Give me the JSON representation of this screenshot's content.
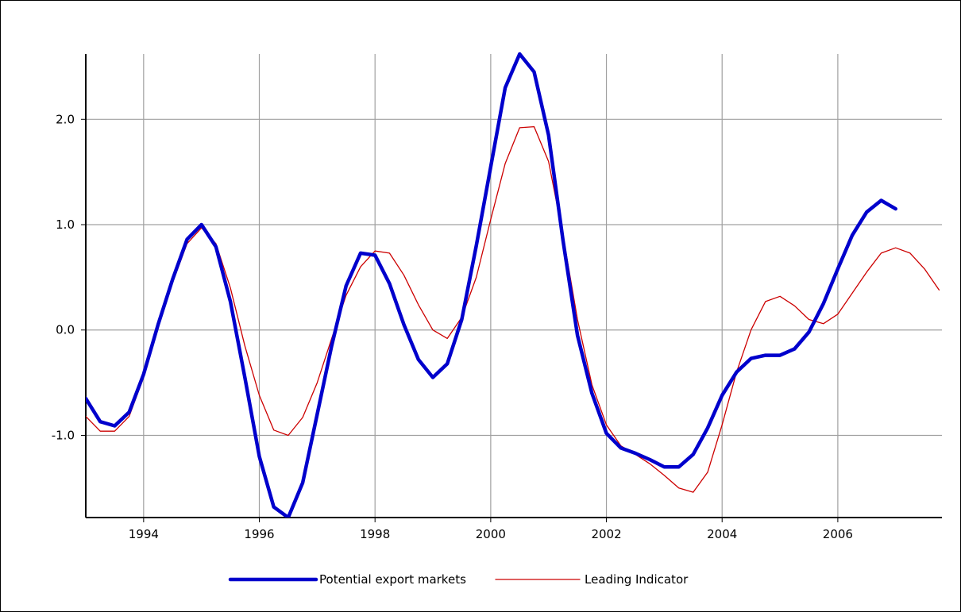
{
  "chart_data": {
    "type": "line",
    "title": "",
    "xlabel": "",
    "ylabel": "",
    "xlim": [
      1993.0,
      2007.8
    ],
    "ylim": [
      -1.78,
      2.62
    ],
    "grid": true,
    "legend_position": "bottom",
    "x_ticks": [
      {
        "value": 1994,
        "label": "1994"
      },
      {
        "value": 1996,
        "label": "1996"
      },
      {
        "value": 1998,
        "label": "1998"
      },
      {
        "value": 2000,
        "label": "2000"
      },
      {
        "value": 2002,
        "label": "2002"
      },
      {
        "value": 2004,
        "label": "2004"
      },
      {
        "value": 2006,
        "label": "2006"
      }
    ],
    "y_ticks": [
      {
        "value": -1.0,
        "label": "-1.0"
      },
      {
        "value": 0.0,
        "label": "0.0"
      },
      {
        "value": 1.0,
        "label": "1.0"
      },
      {
        "value": 2.0,
        "label": "2.0"
      }
    ],
    "series": [
      {
        "name": "Potential export markets",
        "color": "#0000cc",
        "style": "thick",
        "points": [
          [
            1993.0,
            -0.65
          ],
          [
            1993.25,
            -0.87
          ],
          [
            1993.5,
            -0.91
          ],
          [
            1993.75,
            -0.78
          ],
          [
            1994.0,
            -0.42
          ],
          [
            1994.25,
            0.05
          ],
          [
            1994.5,
            0.48
          ],
          [
            1994.75,
            0.86
          ],
          [
            1995.0,
            1.0
          ],
          [
            1995.25,
            0.79
          ],
          [
            1995.5,
            0.27
          ],
          [
            1995.75,
            -0.45
          ],
          [
            1996.0,
            -1.2
          ],
          [
            1996.25,
            -1.68
          ],
          [
            1996.5,
            -1.78
          ],
          [
            1996.75,
            -1.45
          ],
          [
            1997.0,
            -0.8
          ],
          [
            1997.25,
            -0.15
          ],
          [
            1997.5,
            0.42
          ],
          [
            1997.75,
            0.73
          ],
          [
            1998.0,
            0.71
          ],
          [
            1998.25,
            0.44
          ],
          [
            1998.5,
            0.05
          ],
          [
            1998.75,
            -0.28
          ],
          [
            1999.0,
            -0.45
          ],
          [
            1999.25,
            -0.32
          ],
          [
            1999.5,
            0.1
          ],
          [
            1999.75,
            0.8
          ],
          [
            2000.0,
            1.55
          ],
          [
            2000.25,
            2.3
          ],
          [
            2000.5,
            2.62
          ],
          [
            2000.75,
            2.45
          ],
          [
            2001.0,
            1.85
          ],
          [
            2001.25,
            0.85
          ],
          [
            2001.5,
            -0.05
          ],
          [
            2001.75,
            -0.6
          ],
          [
            2002.0,
            -0.98
          ],
          [
            2002.25,
            -1.12
          ],
          [
            2002.5,
            -1.17
          ],
          [
            2002.75,
            -1.23
          ],
          [
            2003.0,
            -1.3
          ],
          [
            2003.25,
            -1.3
          ],
          [
            2003.5,
            -1.18
          ],
          [
            2003.75,
            -0.93
          ],
          [
            2004.0,
            -0.62
          ],
          [
            2004.25,
            -0.4
          ],
          [
            2004.5,
            -0.27
          ],
          [
            2004.75,
            -0.24
          ],
          [
            2005.0,
            -0.24
          ],
          [
            2005.25,
            -0.18
          ],
          [
            2005.5,
            -0.02
          ],
          [
            2005.75,
            0.25
          ],
          [
            2006.0,
            0.58
          ],
          [
            2006.25,
            0.9
          ],
          [
            2006.5,
            1.12
          ],
          [
            2006.75,
            1.23
          ],
          [
            2007.0,
            1.15
          ]
        ]
      },
      {
        "name": "Leading Indicator",
        "color": "#cc0000",
        "style": "thin",
        "points": [
          [
            1993.0,
            -0.82
          ],
          [
            1993.25,
            -0.96
          ],
          [
            1993.5,
            -0.96
          ],
          [
            1993.75,
            -0.82
          ],
          [
            1994.0,
            -0.45
          ],
          [
            1994.25,
            0.05
          ],
          [
            1994.5,
            0.45
          ],
          [
            1994.75,
            0.82
          ],
          [
            1995.0,
            0.97
          ],
          [
            1995.25,
            0.82
          ],
          [
            1995.5,
            0.4
          ],
          [
            1995.75,
            -0.15
          ],
          [
            1996.0,
            -0.62
          ],
          [
            1996.25,
            -0.95
          ],
          [
            1996.5,
            -1.0
          ],
          [
            1996.75,
            -0.83
          ],
          [
            1997.0,
            -0.5
          ],
          [
            1997.25,
            -0.08
          ],
          [
            1997.5,
            0.33
          ],
          [
            1997.75,
            0.6
          ],
          [
            1998.0,
            0.75
          ],
          [
            1998.25,
            0.73
          ],
          [
            1998.5,
            0.52
          ],
          [
            1998.75,
            0.24
          ],
          [
            1999.0,
            0.0
          ],
          [
            1999.25,
            -0.08
          ],
          [
            1999.5,
            0.12
          ],
          [
            1999.75,
            0.5
          ],
          [
            2000.0,
            1.05
          ],
          [
            2000.25,
            1.58
          ],
          [
            2000.5,
            1.92
          ],
          [
            2000.75,
            1.93
          ],
          [
            2001.0,
            1.6
          ],
          [
            2001.25,
            0.9
          ],
          [
            2001.5,
            0.1
          ],
          [
            2001.75,
            -0.52
          ],
          [
            2002.0,
            -0.9
          ],
          [
            2002.25,
            -1.1
          ],
          [
            2002.5,
            -1.18
          ],
          [
            2002.75,
            -1.27
          ],
          [
            2003.0,
            -1.38
          ],
          [
            2003.25,
            -1.5
          ],
          [
            2003.5,
            -1.54
          ],
          [
            2003.75,
            -1.35
          ],
          [
            2004.0,
            -0.9
          ],
          [
            2004.25,
            -0.4
          ],
          [
            2004.5,
            0.0
          ],
          [
            2004.75,
            0.27
          ],
          [
            2005.0,
            0.32
          ],
          [
            2005.25,
            0.23
          ],
          [
            2005.5,
            0.1
          ],
          [
            2005.75,
            0.06
          ],
          [
            2006.0,
            0.15
          ],
          [
            2006.25,
            0.35
          ],
          [
            2006.5,
            0.55
          ],
          [
            2006.75,
            0.73
          ],
          [
            2007.0,
            0.78
          ],
          [
            2007.25,
            0.73
          ],
          [
            2007.5,
            0.58
          ],
          [
            2007.75,
            0.38
          ]
        ]
      }
    ]
  }
}
